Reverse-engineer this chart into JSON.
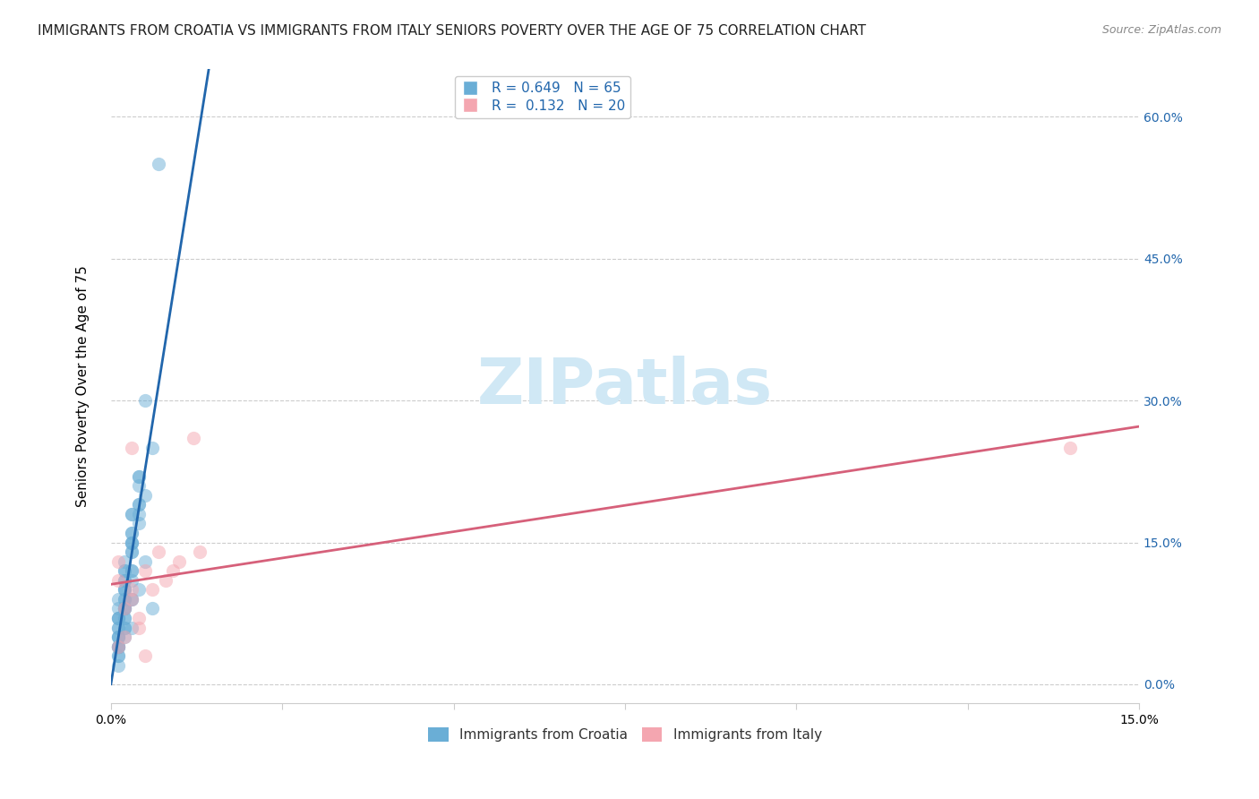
{
  "title": "IMMIGRANTS FROM CROATIA VS IMMIGRANTS FROM ITALY SENIORS POVERTY OVER THE AGE OF 75 CORRELATION CHART",
  "source": "Source: ZipAtlas.com",
  "ylabel": "Seniors Poverty Over the Age of 75",
  "xlim": [
    0,
    0.15
  ],
  "ylim": [
    -0.02,
    0.65
  ],
  "croatia_R": 0.649,
  "croatia_N": 65,
  "italy_R": 0.132,
  "italy_N": 20,
  "color_croatia": "#6aaed6",
  "color_italy": "#f4a6b0",
  "color_line_croatia": "#2166ac",
  "color_line_italy": "#d6607a",
  "background_color": "#ffffff",
  "grid_color": "#cccccc",
  "watermark_text": "ZIPatlas",
  "watermark_color": "#d0e8f5",
  "croatia_x": [
    0.001,
    0.002,
    0.003,
    0.001,
    0.004,
    0.002,
    0.001,
    0.003,
    0.002,
    0.001,
    0.005,
    0.003,
    0.002,
    0.004,
    0.006,
    0.001,
    0.002,
    0.003,
    0.001,
    0.002,
    0.004,
    0.002,
    0.003,
    0.001,
    0.002,
    0.003,
    0.004,
    0.002,
    0.001,
    0.003,
    0.005,
    0.004,
    0.003,
    0.002,
    0.001,
    0.002,
    0.003,
    0.004,
    0.002,
    0.001,
    0.006,
    0.005,
    0.003,
    0.002,
    0.001,
    0.002,
    0.003,
    0.001,
    0.002,
    0.001,
    0.003,
    0.002,
    0.001,
    0.004,
    0.002,
    0.003,
    0.001,
    0.002,
    0.007,
    0.003,
    0.004,
    0.002,
    0.001,
    0.003,
    0.001
  ],
  "croatia_y": [
    0.08,
    0.1,
    0.16,
    0.07,
    0.22,
    0.12,
    0.09,
    0.18,
    0.11,
    0.05,
    0.2,
    0.15,
    0.13,
    0.17,
    0.25,
    0.06,
    0.08,
    0.14,
    0.07,
    0.09,
    0.19,
    0.11,
    0.16,
    0.06,
    0.1,
    0.18,
    0.22,
    0.12,
    0.07,
    0.15,
    0.3,
    0.21,
    0.14,
    0.09,
    0.04,
    0.08,
    0.12,
    0.18,
    0.1,
    0.05,
    0.08,
    0.13,
    0.09,
    0.06,
    0.03,
    0.07,
    0.11,
    0.05,
    0.08,
    0.04,
    0.06,
    0.05,
    0.02,
    0.1,
    0.07,
    0.09,
    0.04,
    0.06,
    0.55,
    0.12,
    0.19,
    0.08,
    0.03,
    0.15,
    0.04
  ],
  "italy_x": [
    0.001,
    0.002,
    0.001,
    0.003,
    0.001,
    0.005,
    0.004,
    0.003,
    0.007,
    0.002,
    0.004,
    0.006,
    0.003,
    0.008,
    0.005,
    0.01,
    0.009,
    0.012,
    0.013,
    0.14
  ],
  "italy_y": [
    0.11,
    0.08,
    0.04,
    0.1,
    0.13,
    0.12,
    0.06,
    0.09,
    0.14,
    0.05,
    0.07,
    0.1,
    0.25,
    0.11,
    0.03,
    0.13,
    0.12,
    0.26,
    0.14,
    0.25
  ],
  "title_fontsize": 11,
  "axis_label_fontsize": 11,
  "tick_fontsize": 10,
  "marker_size": 120,
  "marker_alpha": 0.5
}
